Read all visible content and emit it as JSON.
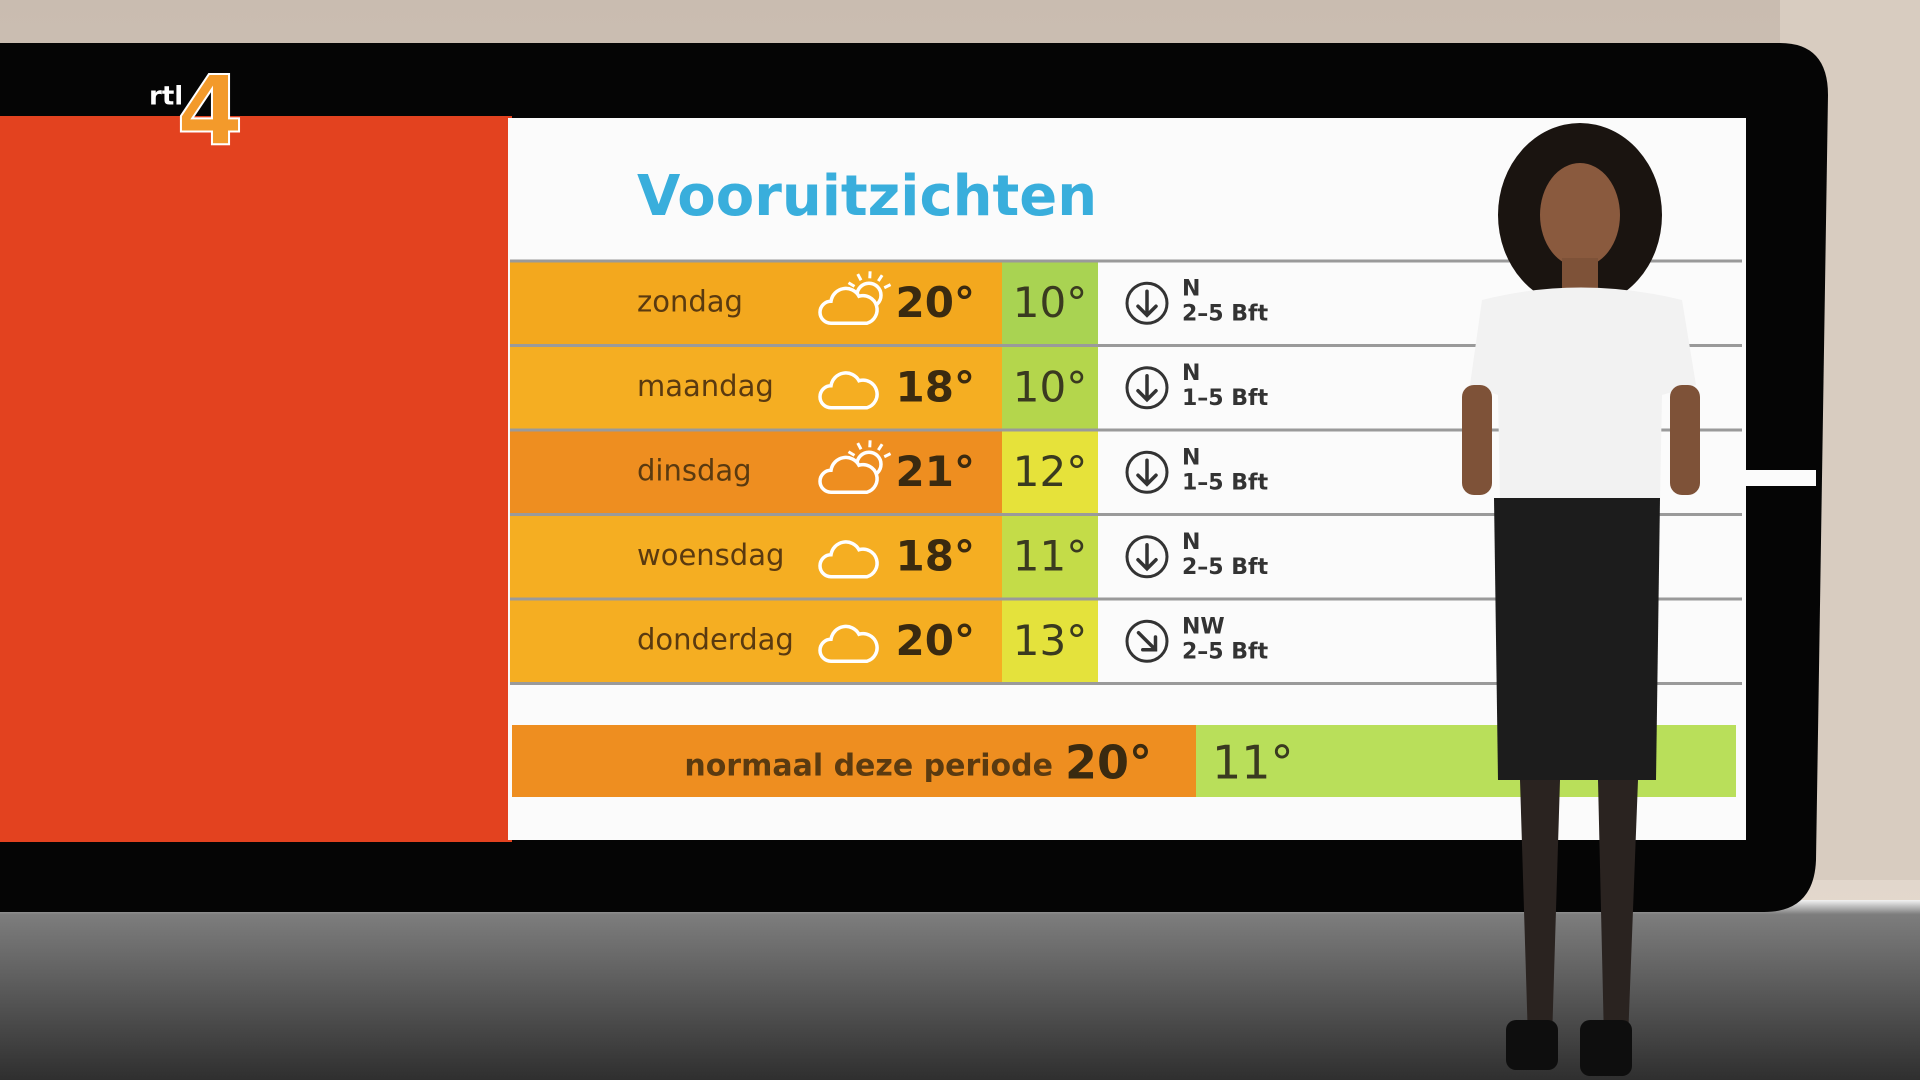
{
  "logo": {
    "text": "rtl",
    "number": "4"
  },
  "title": "Vooruitzichten",
  "table": {
    "rows": [
      {
        "day": "zondag",
        "max": "20°",
        "min": "10°",
        "wind_direction": "N",
        "wind_force": "2–5 Bft",
        "sun": true,
        "max_color": "#f3a81e",
        "min_color": "#a9d352",
        "arrow_rotation": 0
      },
      {
        "day": "maandag",
        "max": "18°",
        "min": "10°",
        "wind_direction": "N",
        "wind_force": "1–5 Bft",
        "sun": false,
        "max_color": "#f5ae22",
        "min_color": "#b4d64c",
        "arrow_rotation": 0
      },
      {
        "day": "dinsdag",
        "max": "21°",
        "min": "12°",
        "wind_direction": "N",
        "wind_force": "1–5 Bft",
        "sun": true,
        "max_color": "#ee8e20",
        "min_color": "#e6e23a",
        "arrow_rotation": 0
      },
      {
        "day": "woensdag",
        "max": "18°",
        "min": "11°",
        "wind_direction": "N",
        "wind_force": "2–5 Bft",
        "sun": false,
        "max_color": "#f5ae22",
        "min_color": "#c4dc48",
        "arrow_rotation": 0
      },
      {
        "day": "donderdag",
        "max": "20°",
        "min": "13°",
        "wind_direction": "NW",
        "wind_force": "2–5 Bft",
        "sun": false,
        "max_color": "#f5ae22",
        "min_color": "#e4e23c",
        "arrow_rotation": -45
      }
    ]
  },
  "footer": {
    "label": "normaal deze periode",
    "max": "20°",
    "min": "11°"
  }
}
